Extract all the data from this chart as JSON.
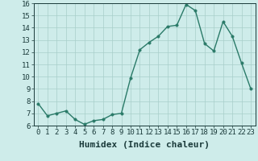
{
  "x": [
    0,
    1,
    2,
    3,
    4,
    5,
    6,
    7,
    8,
    9,
    10,
    11,
    12,
    13,
    14,
    15,
    16,
    17,
    18,
    19,
    20,
    21,
    22,
    23
  ],
  "y": [
    7.8,
    6.8,
    7.0,
    7.2,
    6.5,
    6.1,
    6.4,
    6.5,
    6.9,
    7.0,
    9.9,
    12.2,
    12.8,
    13.3,
    14.1,
    14.2,
    15.9,
    15.4,
    12.7,
    12.1,
    14.5,
    13.3,
    11.1,
    9.0
  ],
  "line_color": "#2a7a68",
  "marker_color": "#2a7a68",
  "bg_color": "#ceecea",
  "grid_color": "#a8ceca",
  "xlabel": "Humidex (Indice chaleur)",
  "ylim": [
    6,
    16
  ],
  "xlim": [
    -0.5,
    23.5
  ],
  "yticks": [
    6,
    7,
    8,
    9,
    10,
    11,
    12,
    13,
    14,
    15,
    16
  ],
  "xticks": [
    0,
    1,
    2,
    3,
    4,
    5,
    6,
    7,
    8,
    9,
    10,
    11,
    12,
    13,
    14,
    15,
    16,
    17,
    18,
    19,
    20,
    21,
    22,
    23
  ],
  "xtick_labels": [
    "0",
    "1",
    "2",
    "3",
    "4",
    "5",
    "6",
    "7",
    "8",
    "9",
    "10",
    "11",
    "12",
    "13",
    "14",
    "15",
    "16",
    "17",
    "18",
    "19",
    "20",
    "21",
    "22",
    "23"
  ],
  "font_color": "#1a3a3a",
  "tick_fontsize": 6.5,
  "xlabel_fontsize": 8,
  "linewidth": 1.0,
  "markersize": 2.5
}
